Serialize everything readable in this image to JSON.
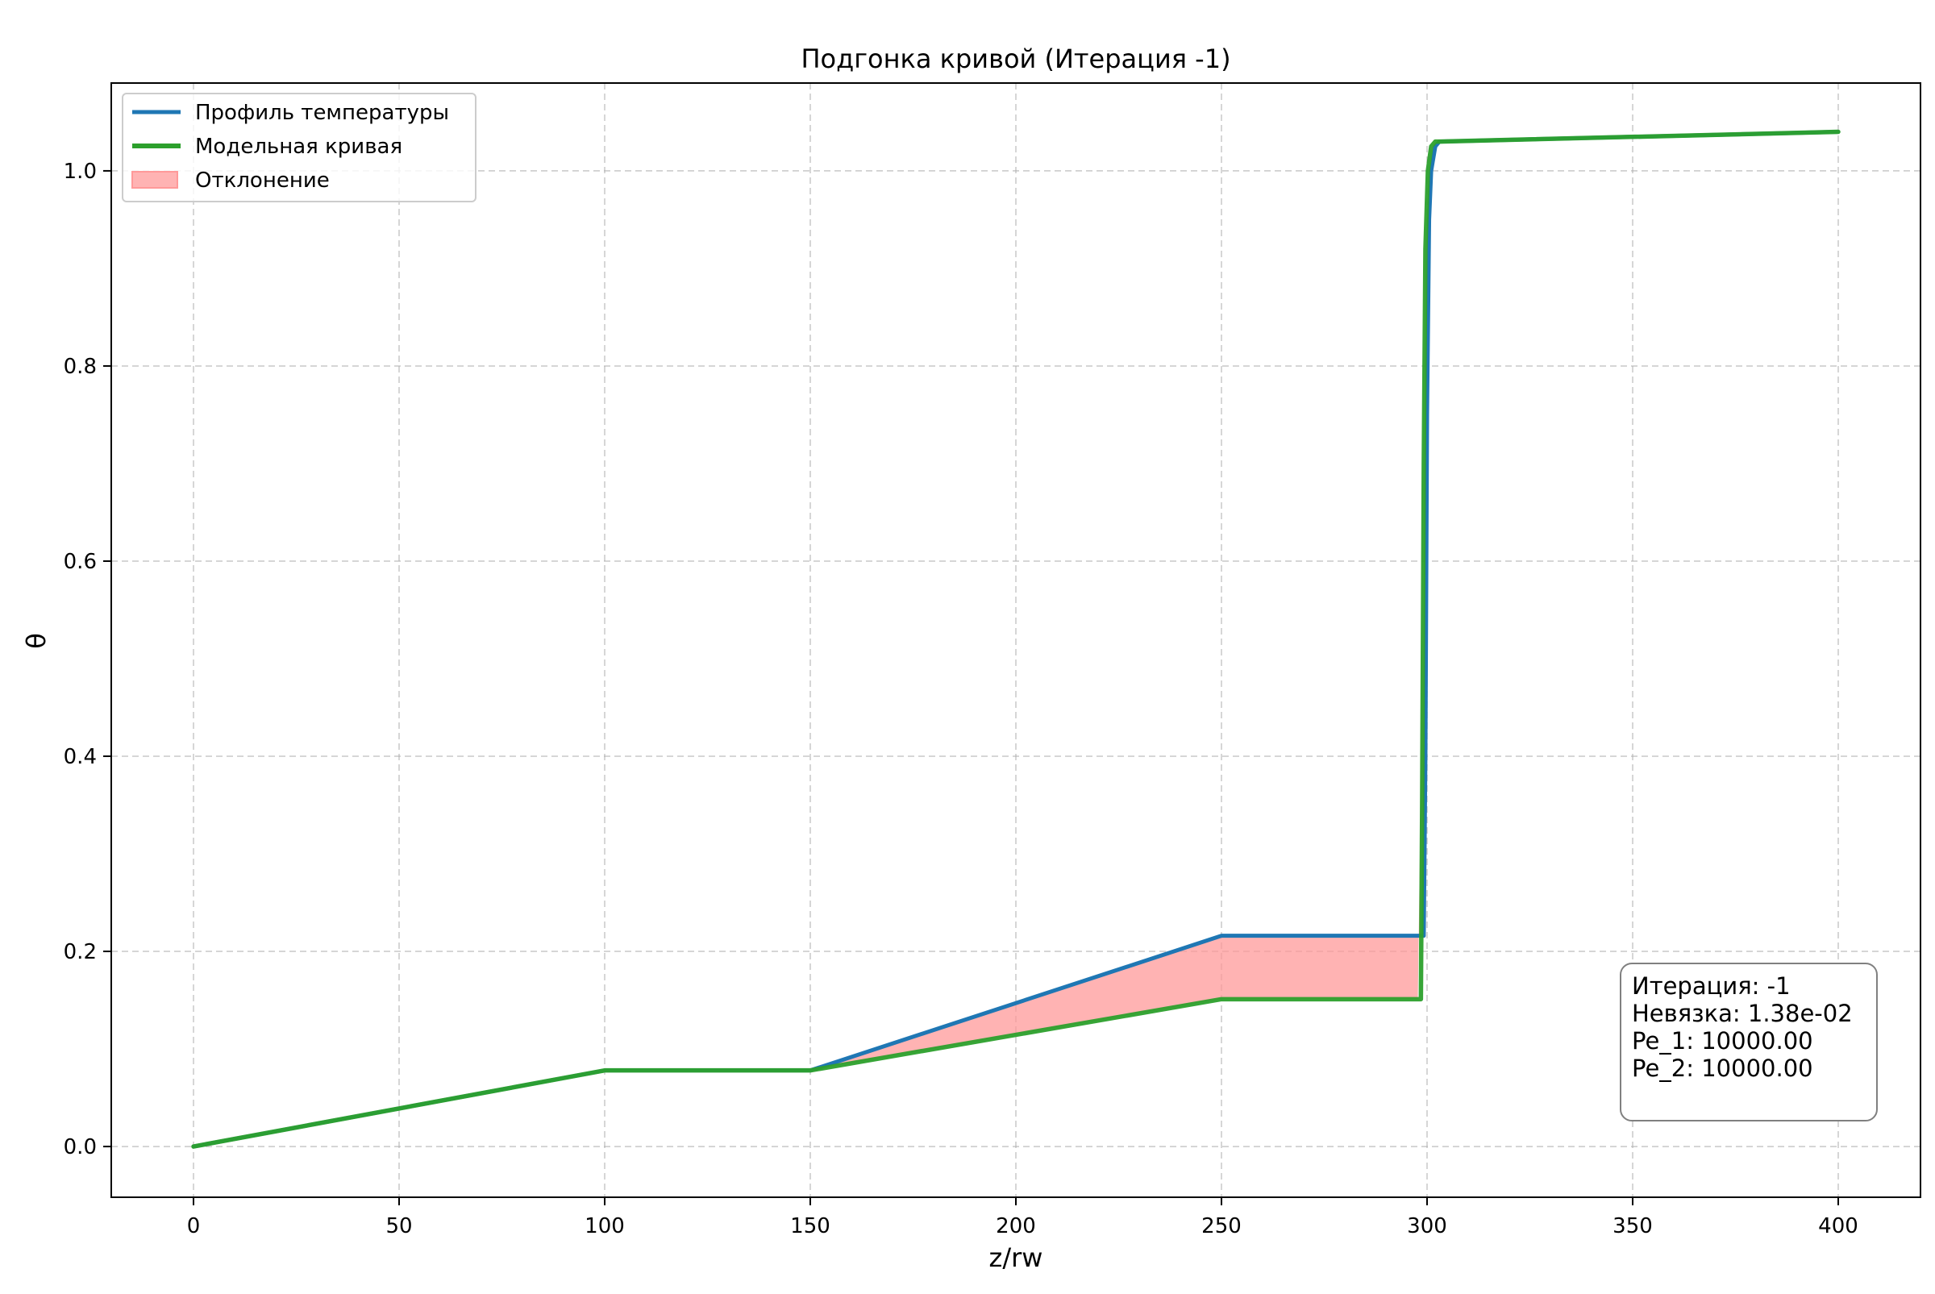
{
  "chart_data": {
    "type": "line",
    "title": "Подгонка кривой (Итерация -1)",
    "xlabel": "z/rw",
    "ylabel": "θ",
    "xlim": [
      -20,
      420
    ],
    "ylim": [
      -0.052,
      1.09
    ],
    "xticks": [
      0,
      50,
      100,
      150,
      200,
      250,
      300,
      350,
      400
    ],
    "xtick_labels": [
      "0",
      "50",
      "100",
      "150",
      "200",
      "250",
      "300",
      "350",
      "400"
    ],
    "yticks": [
      0.0,
      0.2,
      0.4,
      0.6,
      0.8,
      1.0
    ],
    "ytick_labels": [
      "0.0",
      "0.2",
      "0.4",
      "0.6",
      "0.8",
      "1.0"
    ],
    "grid": true,
    "legend_position": "top-left",
    "series": [
      {
        "name": "Профиль температуры",
        "color": "#1f77b4",
        "x": [
          0,
          100,
          150,
          250,
          299.2,
          299.6,
          300.0,
          300.5,
          301,
          302,
          303,
          400
        ],
        "y": [
          0.0,
          0.078,
          0.078,
          0.216,
          0.216,
          0.4,
          0.75,
          0.95,
          1.0,
          1.025,
          1.03,
          1.04
        ]
      },
      {
        "name": "Модельная кривая",
        "color": "#2ca02c",
        "x": [
          0,
          100,
          150,
          250,
          298.5,
          298.8,
          299.2,
          299.6,
          300.2,
          301,
          302,
          303,
          400
        ],
        "y": [
          0.0,
          0.078,
          0.078,
          0.151,
          0.151,
          0.35,
          0.7,
          0.92,
          1.0,
          1.025,
          1.03,
          1.03,
          1.04
        ]
      }
    ],
    "fill": {
      "name": "Отклонение",
      "color": "#ff9999",
      "between_series": [
        0,
        1
      ],
      "x_range": [
        150,
        299
      ]
    },
    "info_box": {
      "lines": [
        "Итерация: -1",
        "Невязка: 1.38e-02",
        "Pe_1: 10000.00",
        "Pe_2: 10000.00"
      ],
      "position": "bottom-right"
    }
  }
}
